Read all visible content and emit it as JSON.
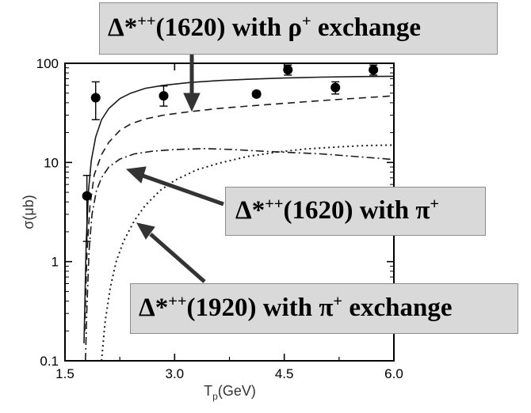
{
  "chart_data": {
    "type": "line",
    "title": "",
    "xlabel": "T_p(GeV)",
    "ylabel": "σ(μb)",
    "xlim": [
      1.5,
      6.0
    ],
    "ylim": [
      0.1,
      100
    ],
    "yscale": "log",
    "x_ticks": [
      "1.5",
      "3.0",
      "4.5",
      "6.0"
    ],
    "y_ticks": [
      "0.1",
      "1",
      "10",
      "100"
    ],
    "grid": false,
    "points": {
      "x": [
        1.8,
        1.92,
        2.85,
        4.12,
        4.55,
        5.2,
        5.72
      ],
      "y": [
        4.6,
        45,
        47,
        49,
        86,
        57,
        86
      ],
      "err_low": [
        3.0,
        18,
        10,
        3,
        10,
        8,
        10
      ],
      "err_high": [
        2.8,
        20,
        12,
        3,
        10,
        8,
        10
      ]
    },
    "series": [
      {
        "style": "solid",
        "x": [
          1.76,
          1.79,
          1.82,
          1.86,
          1.92,
          2.0,
          2.1,
          2.25,
          2.4,
          2.6,
          2.85,
          3.2,
          3.6,
          4.0,
          4.5,
          5.0,
          5.5,
          6.0
        ],
        "y": [
          0.15,
          1.5,
          5.0,
          10.5,
          18,
          27,
          35,
          44,
          50,
          56,
          60,
          64,
          67,
          69,
          71,
          72.5,
          73.5,
          74
        ]
      },
      {
        "style": "dash",
        "x": [
          1.77,
          1.8,
          1.84,
          1.9,
          2.0,
          2.1,
          2.25,
          2.4,
          2.6,
          2.85,
          3.2,
          3.6,
          4.0,
          4.5,
          5.0,
          5.5,
          6.0
        ],
        "y": [
          0.2,
          1.2,
          3.6,
          7.5,
          12,
          16,
          21,
          24.5,
          27.5,
          30,
          32.5,
          35,
          37,
          39.5,
          42,
          44.5,
          47
        ]
      },
      {
        "style": "dash-dot",
        "x": [
          1.78,
          1.8,
          1.83,
          1.87,
          1.93,
          2.0,
          2.1,
          2.25,
          2.45,
          2.7,
          3.0,
          3.4,
          3.8,
          4.2,
          4.6,
          5.0,
          5.4,
          5.8,
          6.0
        ],
        "y": [
          0.1,
          0.35,
          1.3,
          3.0,
          5.2,
          7.0,
          9.0,
          10.8,
          12.2,
          13.0,
          13.5,
          13.8,
          13.5,
          13.0,
          12.6,
          12.2,
          11.6,
          11.0,
          10.7
        ]
      },
      {
        "style": "dot",
        "x": [
          2.0,
          2.05,
          2.12,
          2.2,
          2.3,
          2.45,
          2.6,
          2.8,
          3.0,
          3.3,
          3.6,
          4.0,
          4.4,
          4.8,
          5.2,
          5.6,
          6.0
        ],
        "y": [
          0.1,
          0.25,
          0.55,
          1.0,
          1.6,
          2.6,
          3.7,
          5.2,
          6.6,
          8.4,
          9.8,
          11.5,
          12.7,
          13.7,
          14.3,
          14.8,
          15.0
        ]
      }
    ],
    "annotations": [
      {
        "base": "Δ*",
        "sup": "++",
        "text": "(1620) with ρ",
        "sup2": "+",
        "tail": " exchange"
      },
      {
        "base": "Δ*",
        "sup": "++",
        "text": "(1620) with π",
        "sup2": "+",
        "tail": ""
      },
      {
        "base": "Δ*",
        "sup": "++",
        "text": "(1920) with π",
        "sup2": "+",
        "tail": " exchange"
      }
    ],
    "colors": {
      "axis": "#000000",
      "lines": "#1a1a1a",
      "callout_bg": "#d9d9d9",
      "callout_border": "#8c8c8c",
      "arrow": "#333333"
    }
  }
}
